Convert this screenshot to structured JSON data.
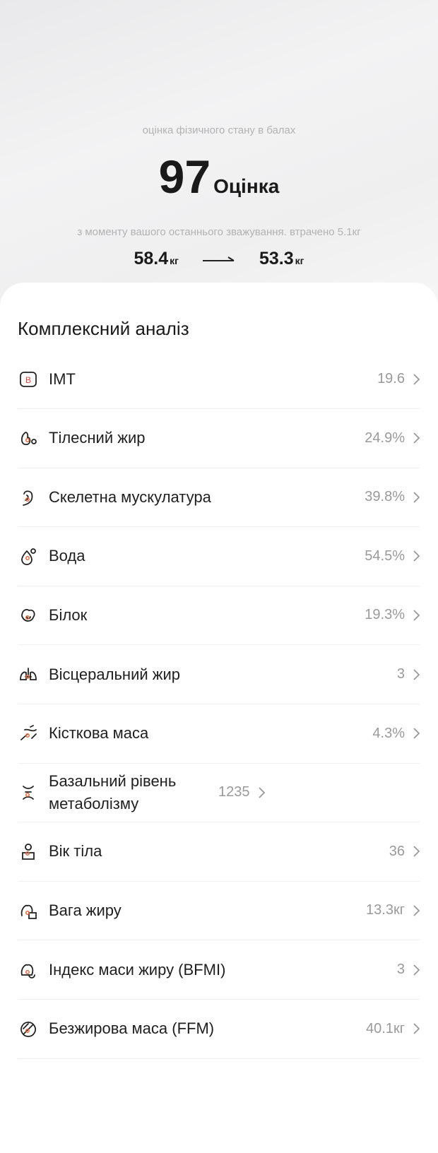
{
  "header": {
    "subtitle": "оцінка фізичного стану в балах",
    "score": "97",
    "score_label": "Оцінка",
    "note": "з моменту вашого останнього зважування. втрачено 5.1кг",
    "weight_before": {
      "value": "58.4",
      "unit": "кг"
    },
    "weight_after": {
      "value": "53.3",
      "unit": "кг"
    }
  },
  "analysis": {
    "title": "Комплексний аналіз",
    "rows": [
      {
        "icon": "B",
        "label": "IMT",
        "value": "19.6"
      },
      {
        "label": "Тілесний жир",
        "value": "24.9%"
      },
      {
        "label": "Скелетна мускулатура",
        "value": "39.8%"
      },
      {
        "label": "Вода",
        "value": "54.5%"
      },
      {
        "label": "Білок",
        "value": "19.3%"
      },
      {
        "label": "Вісцеральний жир",
        "value": "3"
      },
      {
        "label": "Кісткова маса",
        "value": "4.3%"
      },
      {
        "label": "Базальний рівень метаболізму",
        "value": "1235"
      },
      {
        "label": "Вік тіла",
        "value": "36"
      },
      {
        "label": "Вага жиру",
        "value": "13.3кг"
      },
      {
        "label": "Індекс маси жиру (BFMI)",
        "value": "3"
      },
      {
        "label": "Безжирова маса (FFM)",
        "value": "40.1кг"
      }
    ]
  }
}
